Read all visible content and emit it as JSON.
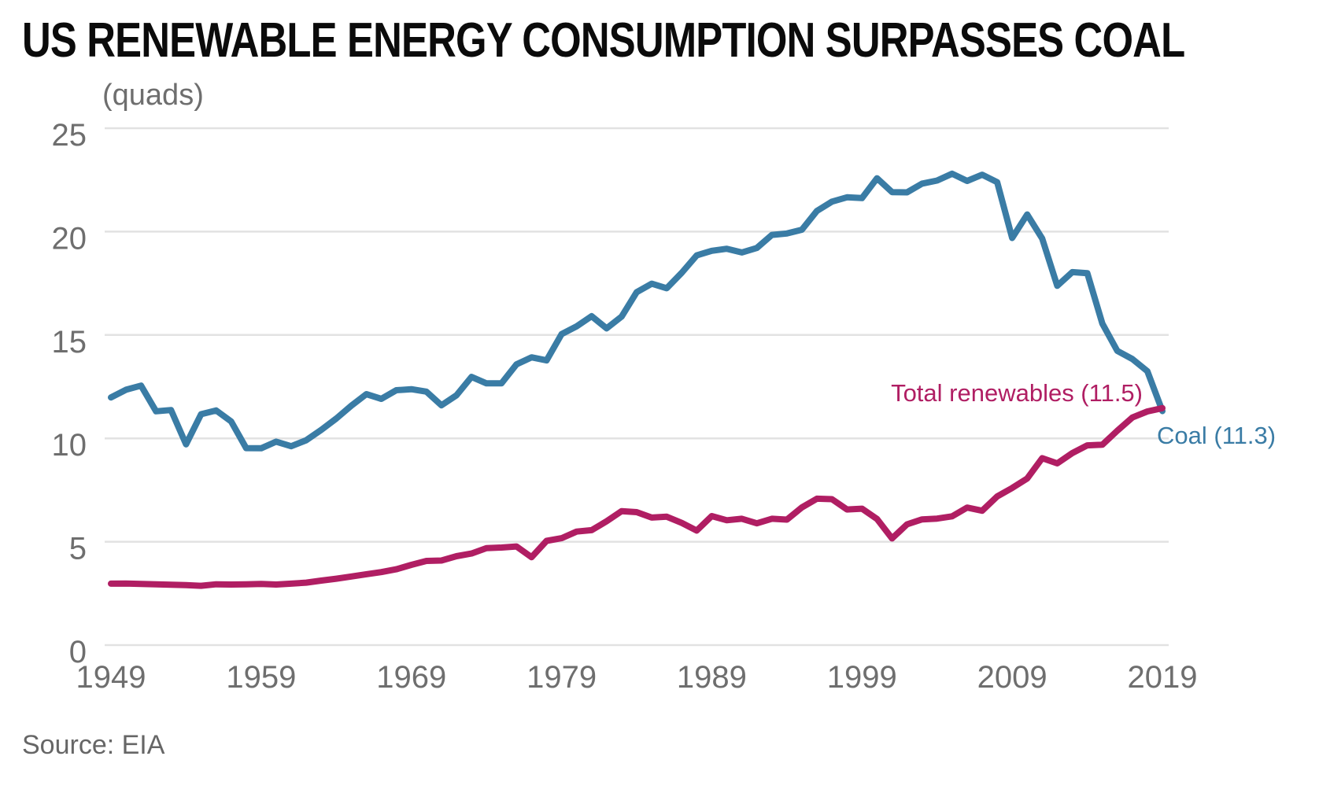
{
  "title": "US RENEWABLE ENERGY CONSUMPTION SURPASSES COAL",
  "source": "Source: EIA",
  "chart_data": {
    "type": "line",
    "title": "US RENEWABLE ENERGY CONSUMPTION SURPASSES COAL",
    "unit_label": "(quads)",
    "xlabel": "",
    "ylabel": "(quads)",
    "xlim": [
      1949,
      2019
    ],
    "ylim": [
      0,
      25
    ],
    "xticks": [
      1949,
      1959,
      1969,
      1979,
      1989,
      1999,
      2009,
      2019
    ],
    "yticks": [
      0,
      5,
      10,
      15,
      20,
      25
    ],
    "grid": "horizontal",
    "legend_position": "inline-end-of-line-labels",
    "x": [
      1949,
      1950,
      1951,
      1952,
      1953,
      1954,
      1955,
      1956,
      1957,
      1958,
      1959,
      1960,
      1961,
      1962,
      1963,
      1964,
      1965,
      1966,
      1967,
      1968,
      1969,
      1970,
      1971,
      1972,
      1973,
      1974,
      1975,
      1976,
      1977,
      1978,
      1979,
      1980,
      1981,
      1982,
      1983,
      1984,
      1985,
      1986,
      1987,
      1988,
      1989,
      1990,
      1991,
      1992,
      1993,
      1994,
      1995,
      1996,
      1997,
      1998,
      1999,
      2000,
      2001,
      2002,
      2003,
      2004,
      2005,
      2006,
      2007,
      2008,
      2009,
      2010,
      2011,
      2012,
      2013,
      2014,
      2015,
      2016,
      2017,
      2018,
      2019
    ],
    "series": [
      {
        "key": "coal",
        "name": "Coal",
        "end_label": "Coal (11.3)",
        "end_value": 11.3,
        "color": "#3a7ca5",
        "values": [
          11.98,
          12.35,
          12.55,
          11.31,
          11.37,
          9.71,
          11.17,
          11.35,
          10.82,
          9.53,
          9.52,
          9.84,
          9.62,
          9.91,
          10.41,
          10.96,
          11.58,
          12.14,
          11.91,
          12.33,
          12.38,
          12.26,
          11.6,
          12.08,
          12.97,
          12.66,
          12.66,
          13.58,
          13.92,
          13.77,
          15.04,
          15.42,
          15.91,
          15.32,
          15.89,
          17.07,
          17.48,
          17.26,
          18.01,
          18.85,
          19.07,
          19.17,
          18.99,
          19.21,
          19.84,
          19.91,
          20.09,
          21.0,
          21.45,
          21.66,
          21.62,
          22.58,
          21.91,
          21.9,
          22.32,
          22.47,
          22.8,
          22.45,
          22.75,
          22.39,
          19.69,
          20.83,
          19.66,
          17.38,
          18.04,
          17.99,
          15.55,
          14.23,
          13.84,
          13.25,
          11.32
        ]
      },
      {
        "key": "total-renewables",
        "name": "Total renewables",
        "end_label": "Total renewables (11.5)",
        "end_value": 11.5,
        "color": "#b01e63",
        "values": [
          2.97,
          2.98,
          2.96,
          2.94,
          2.92,
          2.9,
          2.87,
          2.94,
          2.93,
          2.94,
          2.96,
          2.93,
          2.97,
          3.02,
          3.12,
          3.21,
          3.32,
          3.43,
          3.53,
          3.67,
          3.88,
          4.07,
          4.09,
          4.3,
          4.43,
          4.69,
          4.72,
          4.77,
          4.25,
          5.04,
          5.17,
          5.49,
          5.56,
          5.99,
          6.48,
          6.43,
          6.17,
          6.21,
          5.91,
          5.54,
          6.24,
          6.04,
          6.11,
          5.89,
          6.11,
          6.07,
          6.66,
          7.08,
          7.06,
          6.56,
          6.6,
          6.1,
          5.16,
          5.84,
          6.08,
          6.12,
          6.23,
          6.65,
          6.5,
          7.19,
          7.6,
          8.06,
          9.04,
          8.79,
          9.29,
          9.66,
          9.69,
          10.37,
          11.01,
          11.3,
          11.46
        ]
      }
    ]
  }
}
